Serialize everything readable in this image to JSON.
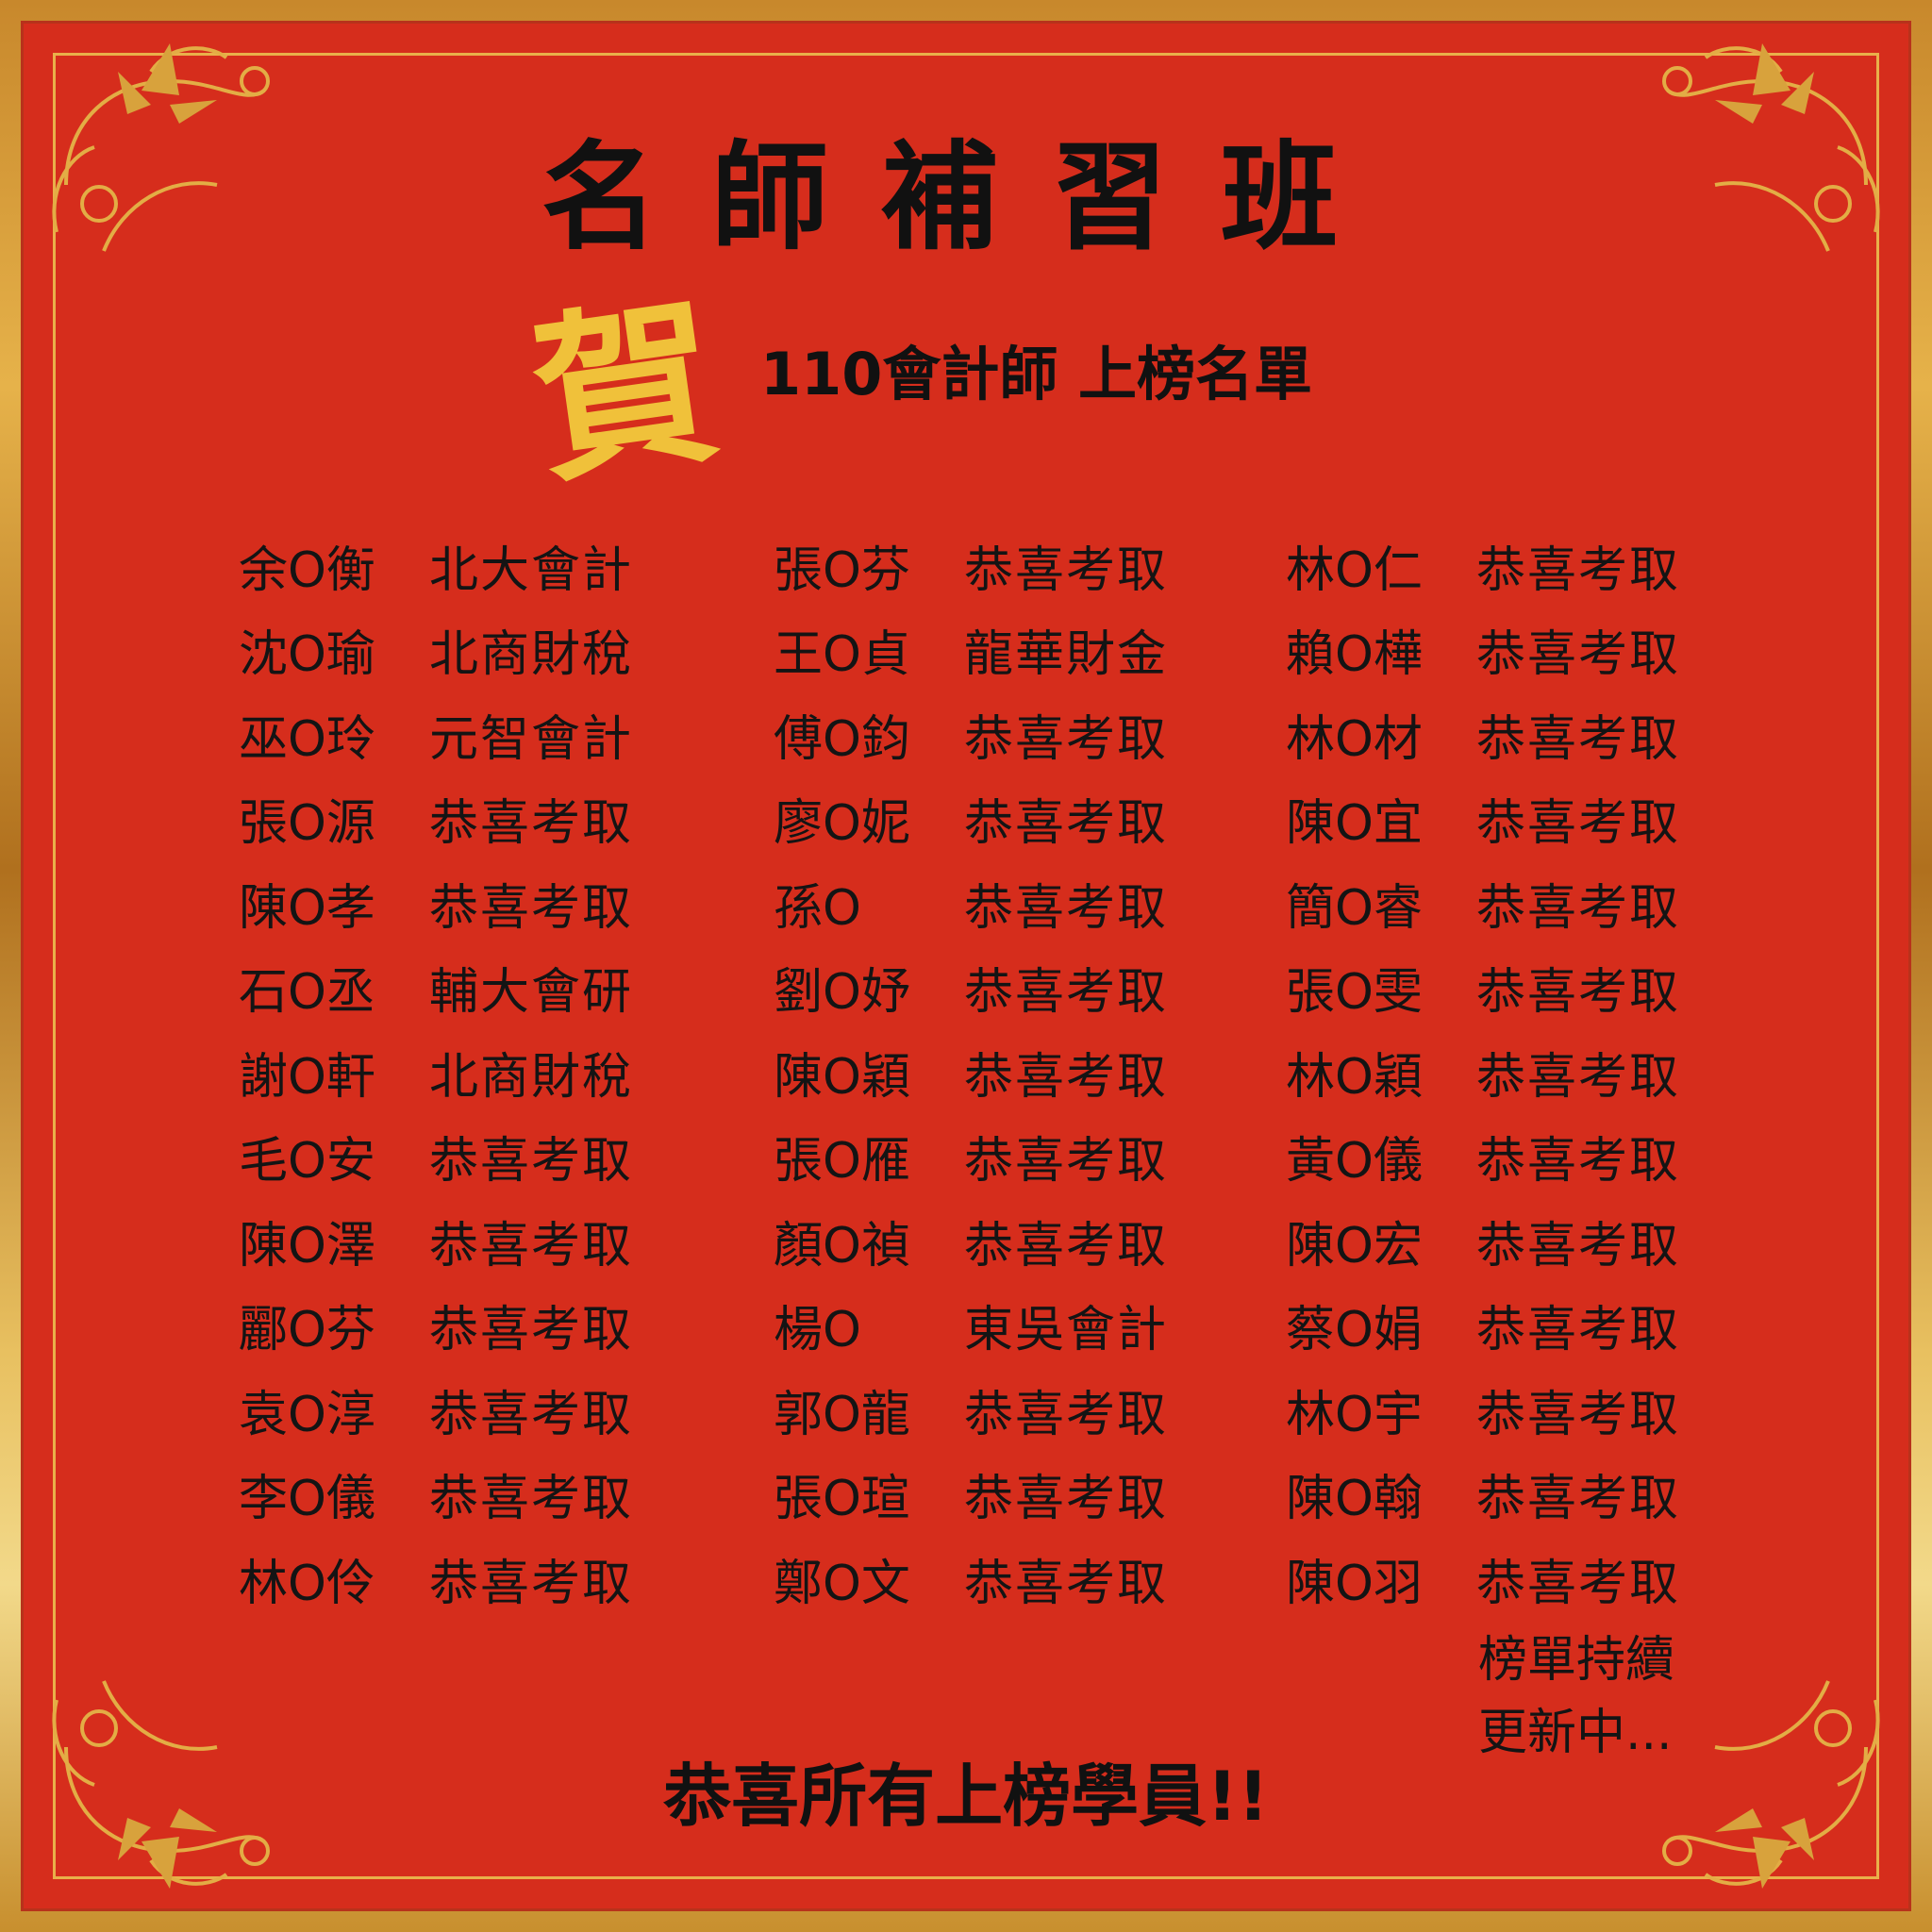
{
  "title": "名師補習班",
  "badge_char": "賀",
  "subtitle": "110會計師 上榜名單",
  "columns": [
    [
      {
        "name": "余O衡",
        "status": "北大會計"
      },
      {
        "name": "沈O瑜",
        "status": "北商財稅"
      },
      {
        "name": "巫O玲",
        "status": "元智會計"
      },
      {
        "name": "張O源",
        "status": "恭喜考取"
      },
      {
        "name": "陳O孝",
        "status": "恭喜考取"
      },
      {
        "name": "石O丞",
        "status": "輔大會研"
      },
      {
        "name": "謝O軒",
        "status": "北商財稅"
      },
      {
        "name": "毛O安",
        "status": "恭喜考取"
      },
      {
        "name": "陳O澤",
        "status": "恭喜考取"
      },
      {
        "name": "酈O芬",
        "status": "恭喜考取"
      },
      {
        "name": "袁O淳",
        "status": "恭喜考取"
      },
      {
        "name": "李O儀",
        "status": "恭喜考取"
      },
      {
        "name": "林O伶",
        "status": "恭喜考取"
      }
    ],
    [
      {
        "name": "張O芬",
        "status": "恭喜考取"
      },
      {
        "name": "王O貞",
        "status": "龍華財金"
      },
      {
        "name": "傅O鈞",
        "status": "恭喜考取"
      },
      {
        "name": "廖O妮",
        "status": "恭喜考取"
      },
      {
        "name": "孫O",
        "status": "恭喜考取"
      },
      {
        "name": "劉O妤",
        "status": "恭喜考取"
      },
      {
        "name": "陳O穎",
        "status": "恭喜考取"
      },
      {
        "name": "張O雁",
        "status": "恭喜考取"
      },
      {
        "name": "顏O禎",
        "status": "恭喜考取"
      },
      {
        "name": "楊O",
        "status": "東吳會計"
      },
      {
        "name": "郭O龍",
        "status": "恭喜考取"
      },
      {
        "name": "張O瑄",
        "status": "恭喜考取"
      },
      {
        "name": "鄭O文",
        "status": "恭喜考取"
      }
    ],
    [
      {
        "name": "林O仁",
        "status": "恭喜考取"
      },
      {
        "name": "賴O樺",
        "status": "恭喜考取"
      },
      {
        "name": "林O材",
        "status": "恭喜考取"
      },
      {
        "name": "陳O宜",
        "status": "恭喜考取"
      },
      {
        "name": "簡O睿",
        "status": "恭喜考取"
      },
      {
        "name": "張O雯",
        "status": "恭喜考取"
      },
      {
        "name": "林O穎",
        "status": "恭喜考取"
      },
      {
        "name": "黃O儀",
        "status": "恭喜考取"
      },
      {
        "name": "陳O宏",
        "status": "恭喜考取"
      },
      {
        "name": "蔡O娟",
        "status": "恭喜考取"
      },
      {
        "name": "林O宇",
        "status": "恭喜考取"
      },
      {
        "name": "陳O翰",
        "status": "恭喜考取"
      },
      {
        "name": "陳O羽",
        "status": "恭喜考取"
      }
    ]
  ],
  "note_lines": [
    "榜單持續",
    "更新中..."
  ],
  "footer": "恭喜所有上榜學員!!",
  "colors": {
    "background": "#d62d1c",
    "gold": "#e9b04a",
    "badge": "#f0c13a",
    "text": "#141414"
  }
}
